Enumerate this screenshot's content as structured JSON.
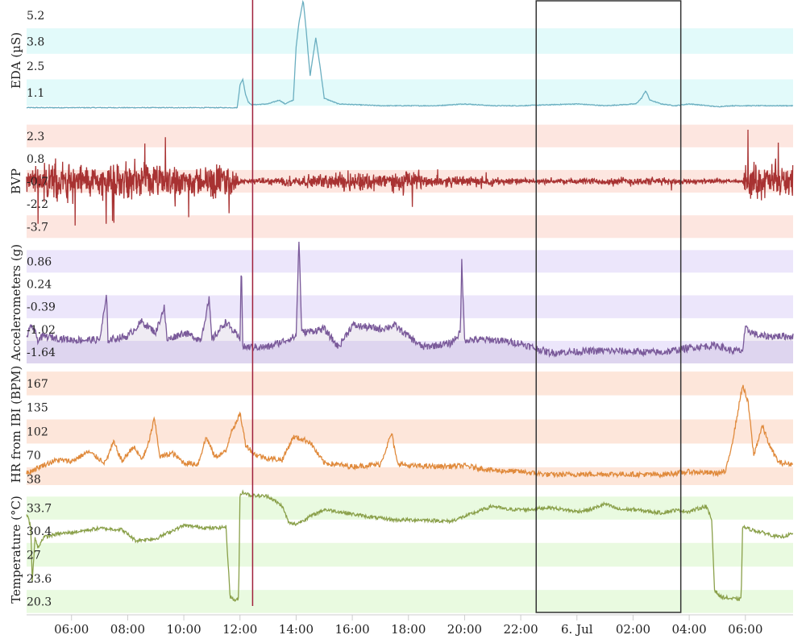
{
  "chart_data": {
    "type": "line",
    "x_axis": {
      "unit": "time",
      "start_hour": 4.4,
      "end_hour": 31.7,
      "tick_labels": [
        "06:00",
        "08:00",
        "10:00",
        "12:00",
        "14:00",
        "16:00",
        "18:00",
        "20:00",
        "22:00",
        "6. Jul",
        "02:00",
        "04:00",
        "06:00"
      ],
      "tick_hours": [
        6,
        8,
        10,
        12,
        14,
        16,
        18,
        20,
        22,
        24,
        26,
        28,
        30
      ]
    },
    "markers": {
      "vertical_line_hour": 12.45,
      "vertical_line_color": "#a0203c",
      "selection_box_hours": [
        22.55,
        27.7
      ],
      "selection_box_color": "#333333"
    },
    "panels": [
      {
        "name": "eda",
        "ylabel": "EDA (µS)",
        "color": "#6aaec0",
        "band_color": "#e2fafa",
        "yrange": [
          -0.4,
          6.0
        ],
        "ticks": [
          5.2,
          3.8,
          2.5,
          1.1
        ],
        "tick_labels": [
          "5.2",
          "3.8",
          "2.5",
          "1.1"
        ],
        "data": [
          [
            4.4,
            0.3
          ],
          [
            6,
            0.3
          ],
          [
            8,
            0.3
          ],
          [
            10,
            0.3
          ],
          [
            11.9,
            0.3
          ],
          [
            12.0,
            1.5
          ],
          [
            12.1,
            1.8
          ],
          [
            12.2,
            1.0
          ],
          [
            12.3,
            0.6
          ],
          [
            12.4,
            0.45
          ],
          [
            13,
            0.5
          ],
          [
            13.4,
            0.7
          ],
          [
            13.6,
            0.5
          ],
          [
            13.9,
            0.7
          ],
          [
            14.0,
            3.5
          ],
          [
            14.1,
            4.8
          ],
          [
            14.25,
            6.0
          ],
          [
            14.35,
            4.5
          ],
          [
            14.5,
            2.0
          ],
          [
            14.7,
            4.0
          ],
          [
            14.85,
            2.5
          ],
          [
            15.0,
            0.8
          ],
          [
            15.5,
            0.5
          ],
          [
            17,
            0.4
          ],
          [
            19,
            0.4
          ],
          [
            20,
            0.5
          ],
          [
            21,
            0.4
          ],
          [
            22,
            0.4
          ],
          [
            23,
            0.45
          ],
          [
            24,
            0.5
          ],
          [
            25,
            0.4
          ],
          [
            26.1,
            0.5
          ],
          [
            26.3,
            0.8
          ],
          [
            26.45,
            1.2
          ],
          [
            26.6,
            0.7
          ],
          [
            27,
            0.5
          ],
          [
            27.5,
            0.4
          ],
          [
            28,
            0.5
          ],
          [
            29,
            0.35
          ],
          [
            29.5,
            0.4
          ],
          [
            30.5,
            0.4
          ],
          [
            31.7,
            0.4
          ]
        ]
      },
      {
        "name": "bvp",
        "ylabel": "BVP",
        "color": "#a83232",
        "band_color": "#fde6e0",
        "yrange": [
          -4.7,
          3.3
        ],
        "ticks": [
          2.3,
          0.8,
          -0.7,
          -2.2,
          -3.7
        ],
        "tick_labels": [
          "2.3",
          "0.8",
          "-0.7",
          "-2.2",
          "-3.7"
        ],
        "center": -0.7,
        "activity": [
          [
            4.4,
            1.0
          ],
          [
            5.4,
            1.8
          ],
          [
            7.0,
            1.4
          ],
          [
            9.0,
            1.5
          ],
          [
            10.5,
            1.3
          ],
          [
            11.6,
            1.7
          ],
          [
            12.0,
            0.2
          ],
          [
            13.0,
            0.3
          ],
          [
            14.0,
            0.5
          ],
          [
            15.0,
            0.6
          ],
          [
            16.0,
            1.0
          ],
          [
            17.0,
            0.8
          ],
          [
            18.0,
            0.9
          ],
          [
            19.0,
            0.5
          ],
          [
            21.0,
            0.4
          ],
          [
            22.5,
            0.2
          ],
          [
            26.0,
            0.4
          ],
          [
            27.2,
            0.3
          ],
          [
            28.5,
            0.2
          ],
          [
            29.9,
            0.1
          ],
          [
            30.0,
            1.6
          ],
          [
            31.7,
            1.4
          ]
        ]
      },
      {
        "name": "acc",
        "ylabel": "Accelerometers (g)",
        "color": "#7a5a9a",
        "band_color": "#ece6fb",
        "yrange": [
          -1.95,
          1.4
        ],
        "ticks": [
          0.86,
          0.24,
          -0.39,
          -1.02,
          -1.64
        ],
        "tick_labels": [
          "0.86",
          "0.24",
          "-0.39",
          "-1.02",
          "-1.64"
        ],
        "data": [
          [
            4.4,
            -1.2
          ],
          [
            4.6,
            -0.9
          ],
          [
            4.8,
            -1.3
          ],
          [
            5.0,
            -1.2
          ],
          [
            6,
            -1.3
          ],
          [
            7.0,
            -1.3
          ],
          [
            7.25,
            -0.1
          ],
          [
            7.3,
            -1.3
          ],
          [
            8,
            -1.2
          ],
          [
            8.5,
            -0.8
          ],
          [
            9.0,
            -1.1
          ],
          [
            9.3,
            -0.4
          ],
          [
            9.4,
            -1.3
          ],
          [
            10,
            -1.1
          ],
          [
            10.6,
            -1.3
          ],
          [
            10.9,
            -0.2
          ],
          [
            11.0,
            -1.3
          ],
          [
            11.5,
            -0.8
          ],
          [
            12.0,
            -1.3
          ],
          [
            12.05,
            1.0
          ],
          [
            12.1,
            -1.5
          ],
          [
            13,
            -1.5
          ],
          [
            14.0,
            -1.2
          ],
          [
            14.1,
            1.5
          ],
          [
            14.2,
            -1.1
          ],
          [
            15,
            -1.0
          ],
          [
            15.5,
            -1.5
          ],
          [
            16,
            -0.9
          ],
          [
            17,
            -1.0
          ],
          [
            17.5,
            -0.9
          ],
          [
            18.5,
            -1.5
          ],
          [
            19.5,
            -1.4
          ],
          [
            19.85,
            -1.1
          ],
          [
            19.9,
            0.9
          ],
          [
            20.0,
            -1.3
          ],
          [
            21,
            -1.3
          ],
          [
            22,
            -1.4
          ],
          [
            23,
            -1.65
          ],
          [
            25,
            -1.6
          ],
          [
            27,
            -1.65
          ],
          [
            28.2,
            -1.5
          ],
          [
            29,
            -1.45
          ],
          [
            29.5,
            -1.6
          ],
          [
            29.9,
            -1.6
          ],
          [
            30.0,
            -1.0
          ],
          [
            30.5,
            -1.2
          ],
          [
            31.7,
            -1.2
          ]
        ]
      },
      {
        "name": "hr",
        "ylabel": "HR from IBI (BPM)",
        "color": "#e08a3c",
        "band_color": "#fde6da",
        "yrange": [
          30,
          194
        ],
        "ticks": [
          167,
          135,
          102,
          70,
          38
        ],
        "tick_labels": [
          "167",
          "135",
          "102",
          "70",
          "38"
        ],
        "data": [
          [
            4.4,
            46
          ],
          [
            5.0,
            57
          ],
          [
            5.5,
            64
          ],
          [
            6.0,
            62
          ],
          [
            6.6,
            75
          ],
          [
            7.2,
            60
          ],
          [
            7.5,
            88
          ],
          [
            7.8,
            62
          ],
          [
            8.2,
            82
          ],
          [
            8.5,
            65
          ],
          [
            8.7,
            80
          ],
          [
            8.95,
            120
          ],
          [
            9.15,
            68
          ],
          [
            9.6,
            73
          ],
          [
            10,
            60
          ],
          [
            10.5,
            58
          ],
          [
            10.8,
            95
          ],
          [
            11.1,
            68
          ],
          [
            11.5,
            75
          ],
          [
            11.7,
            105
          ],
          [
            11.9,
            115
          ],
          [
            12.0,
            128
          ],
          [
            12.2,
            85
          ],
          [
            12.5,
            72
          ],
          [
            13,
            66
          ],
          [
            13.5,
            64
          ],
          [
            13.9,
            95
          ],
          [
            14.2,
            92
          ],
          [
            14.5,
            88
          ],
          [
            14.8,
            70
          ],
          [
            15,
            60
          ],
          [
            16,
            55
          ],
          [
            17,
            58
          ],
          [
            17.4,
            100
          ],
          [
            17.6,
            60
          ],
          [
            18,
            56
          ],
          [
            19,
            55
          ],
          [
            20,
            56
          ],
          [
            21,
            50
          ],
          [
            22,
            48
          ],
          [
            23,
            44
          ],
          [
            25,
            45
          ],
          [
            27,
            44
          ],
          [
            28,
            48
          ],
          [
            29,
            46
          ],
          [
            29.3,
            48
          ],
          [
            29.6,
            100
          ],
          [
            29.9,
            165
          ],
          [
            30.1,
            140
          ],
          [
            30.3,
            70
          ],
          [
            30.6,
            110
          ],
          [
            30.9,
            80
          ],
          [
            31.2,
            60
          ],
          [
            31.7,
            58
          ]
        ]
      },
      {
        "name": "temp",
        "ylabel": "Temperature (°C)",
        "color": "#8aa04a",
        "band_color": "#e9fae0",
        "yrange": [
          18.5,
          37.0
        ],
        "ticks": [
          33.7,
          30.4,
          27.0,
          23.6,
          20.3
        ],
        "tick_labels": [
          "33.7",
          "30.4",
          "27",
          "23.6",
          "20.3"
        ],
        "data": [
          [
            4.4,
            33.0
          ],
          [
            4.55,
            31.0
          ],
          [
            4.6,
            23.0
          ],
          [
            4.7,
            29.5
          ],
          [
            4.8,
            28.0
          ],
          [
            5.0,
            29.5
          ],
          [
            5.5,
            30.0
          ],
          [
            6,
            30.2
          ],
          [
            7,
            30.8
          ],
          [
            7.8,
            30.6
          ],
          [
            8.3,
            29.0
          ],
          [
            8.6,
            29.2
          ],
          [
            9.0,
            29.3
          ],
          [
            9.6,
            30.5
          ],
          [
            10,
            31.2
          ],
          [
            10.5,
            31.0
          ],
          [
            11.0,
            30.8
          ],
          [
            11.5,
            31.0
          ],
          [
            11.65,
            21.0
          ],
          [
            11.8,
            20.5
          ],
          [
            11.95,
            20.6
          ],
          [
            12.0,
            35.5
          ],
          [
            12.1,
            36.0
          ],
          [
            12.4,
            35.5
          ],
          [
            13,
            35.4
          ],
          [
            13.5,
            34.0
          ],
          [
            13.75,
            31.5
          ],
          [
            14.0,
            31.4
          ],
          [
            14.5,
            32.5
          ],
          [
            15.0,
            33.5
          ],
          [
            15.5,
            33.2
          ],
          [
            16.5,
            32.5
          ],
          [
            17.5,
            32.0
          ],
          [
            18.5,
            32.0
          ],
          [
            19.5,
            31.8
          ],
          [
            20,
            32.5
          ],
          [
            21,
            34.0
          ],
          [
            21.5,
            33.5
          ],
          [
            22.3,
            33.5
          ],
          [
            23,
            33.8
          ],
          [
            24,
            33.2
          ],
          [
            24.5,
            33.5
          ],
          [
            25,
            34.3
          ],
          [
            25.5,
            33.5
          ],
          [
            26,
            33.5
          ],
          [
            27,
            33.0
          ],
          [
            27.5,
            33.4
          ],
          [
            28,
            33.2
          ],
          [
            28.6,
            34.0
          ],
          [
            28.8,
            32.0
          ],
          [
            28.9,
            22.0
          ],
          [
            29.1,
            21.0
          ],
          [
            29.5,
            20.7
          ],
          [
            29.85,
            20.6
          ],
          [
            29.9,
            31.0
          ],
          [
            30.3,
            30.5
          ],
          [
            30.8,
            30.0
          ],
          [
            31.2,
            29.5
          ],
          [
            31.7,
            30.0
          ]
        ]
      }
    ]
  }
}
